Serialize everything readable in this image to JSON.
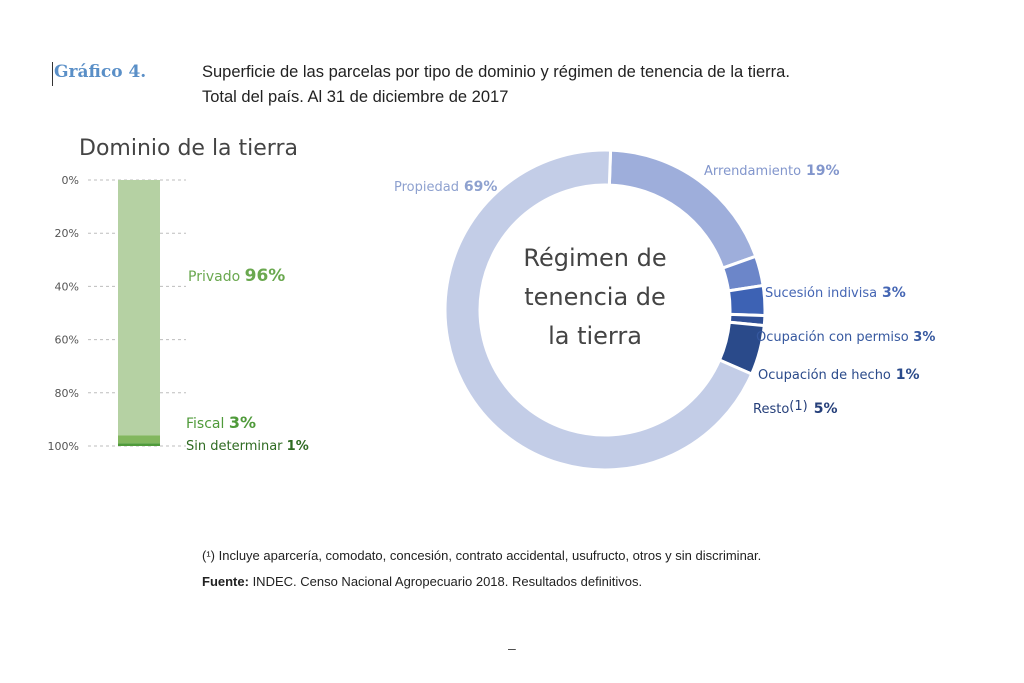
{
  "header": {
    "figure_number": "Gráfico 4.",
    "title_line1": "Superficie de las parcelas por tipo de dominio y régimen de tenencia de la tierra.",
    "title_line2": "Total del país. Al 31 de diciembre de 2017"
  },
  "chart_data": [
    {
      "type": "bar",
      "title": "Dominio de la tierra",
      "orientation": "vertical-stacked",
      "ylim": [
        0,
        100
      ],
      "yaxis_inverted": true,
      "tick_labels": [
        "0%",
        "20%",
        "40%",
        "60%",
        "80%",
        "100%"
      ],
      "grid": true,
      "series": [
        {
          "name": "Privado",
          "value": 96,
          "value_label": "96%",
          "color": "#b5d1a3"
        },
        {
          "name": "Fiscal",
          "value": 3,
          "value_label": "3%",
          "color": "#82b75e"
        },
        {
          "name": "Sin determinar",
          "value": 1,
          "value_label": "1%",
          "color": "#4f9a3a"
        }
      ]
    },
    {
      "type": "pie",
      "variant": "donut",
      "center_label_lines": [
        "Régimen de",
        "tenencia de",
        "la tierra"
      ],
      "slices": [
        {
          "name": "Propiedad",
          "value": 69,
          "value_label": "69%",
          "color": "#c3cde7",
          "label_color": "#8ea1cf"
        },
        {
          "name": "Arrendamiento",
          "value": 19,
          "value_label": "19%",
          "color": "#9eaedb",
          "label_color": "#8296cc"
        },
        {
          "name": "Sucesión indivisa",
          "value": 3,
          "value_label": "3%",
          "color": "#6c86c9",
          "label_color": "#4566b4"
        },
        {
          "name": "Ocupación con permiso",
          "value": 3,
          "value_label": "3%",
          "color": "#3d62b4",
          "label_color": "#36589f"
        },
        {
          "name": "Ocupación de hecho",
          "value": 1,
          "value_label": "1%",
          "color": "#2f4f96",
          "label_color": "#2a4a8a"
        },
        {
          "name": "Resto",
          "name_marker": "(1)",
          "value": 5,
          "value_label": "5%",
          "color": "#2a4a8a",
          "label_color": "#253f7a"
        }
      ]
    }
  ],
  "footer": {
    "footnote": "(¹) Incluye aparcería, comodato, concesión, contrato accidental, usufructo, otros y sin discriminar.",
    "source_label": "Fuente:",
    "source_text": " INDEC. Censo Nacional Agropecuario 2018. Resultados definitivos.",
    "page_mark": "–"
  }
}
